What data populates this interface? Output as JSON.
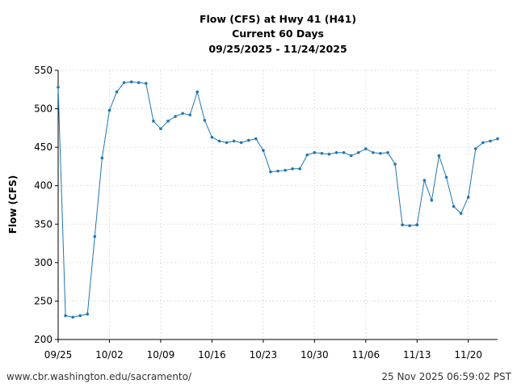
{
  "chart_data": {
    "type": "line",
    "title_lines": [
      "Flow (CFS) at Hwy 41 (H41)",
      "Current 60 Days",
      "09/25/2025 - 11/24/2025"
    ],
    "xlabel": "",
    "ylabel": "Flow (CFS)",
    "ylim": [
      200,
      550
    ],
    "yticks": [
      200,
      250,
      300,
      350,
      400,
      450,
      500,
      550
    ],
    "xlim": [
      "2025-09-25",
      "2025-11-24"
    ],
    "xticks": [
      {
        "date": "2025-09-25",
        "label": "09/25"
      },
      {
        "date": "2025-10-02",
        "label": "10/02"
      },
      {
        "date": "2025-10-09",
        "label": "10/09"
      },
      {
        "date": "2025-10-16",
        "label": "10/16"
      },
      {
        "date": "2025-10-23",
        "label": "10/23"
      },
      {
        "date": "2025-10-30",
        "label": "10/30"
      },
      {
        "date": "2025-11-06",
        "label": "11/06"
      },
      {
        "date": "2025-11-13",
        "label": "11/13"
      },
      {
        "date": "2025-11-20",
        "label": "11/20"
      }
    ],
    "grid": true,
    "line_color": "#1f77b4",
    "series": [
      {
        "x": [
          "2025-09-25",
          "2025-09-26",
          "2025-09-27",
          "2025-09-28",
          "2025-09-29",
          "2025-09-30",
          "2025-10-01",
          "2025-10-02",
          "2025-10-03",
          "2025-10-04",
          "2025-10-05",
          "2025-10-06",
          "2025-10-07",
          "2025-10-08",
          "2025-10-09",
          "2025-10-10",
          "2025-10-11",
          "2025-10-12",
          "2025-10-13",
          "2025-10-14",
          "2025-10-15",
          "2025-10-16",
          "2025-10-17",
          "2025-10-18",
          "2025-10-19",
          "2025-10-20",
          "2025-10-21",
          "2025-10-22",
          "2025-10-23",
          "2025-10-24",
          "2025-10-25",
          "2025-10-26",
          "2025-10-27",
          "2025-10-28",
          "2025-10-29",
          "2025-10-30",
          "2025-10-31",
          "2025-11-01",
          "2025-11-02",
          "2025-11-03",
          "2025-11-04",
          "2025-11-05",
          "2025-11-06",
          "2025-11-07",
          "2025-11-08",
          "2025-11-09",
          "2025-11-10",
          "2025-11-11",
          "2025-11-12",
          "2025-11-13",
          "2025-11-14",
          "2025-11-15",
          "2025-11-16",
          "2025-11-17",
          "2025-11-18",
          "2025-11-19",
          "2025-11-20",
          "2025-11-21",
          "2025-11-22",
          "2025-11-23",
          "2025-11-24"
        ],
        "values": [
          528,
          231,
          229,
          231,
          233,
          334,
          436,
          498,
          522,
          534,
          535,
          534,
          533,
          484,
          474,
          484,
          490,
          494,
          492,
          522,
          485,
          463,
          458,
          456,
          458,
          456,
          459,
          461,
          446,
          418,
          419,
          420,
          422,
          422,
          440,
          443,
          442,
          441,
          443,
          443,
          439,
          443,
          448,
          443,
          442,
          443,
          428,
          349,
          348,
          349,
          407,
          381,
          439,
          411,
          373,
          364,
          385,
          448,
          456,
          458,
          461
        ]
      }
    ]
  },
  "footer": {
    "source": "www.cbr.washington.edu/sacramento/",
    "timestamp": "25 Nov 2025 06:59:02 PST"
  }
}
